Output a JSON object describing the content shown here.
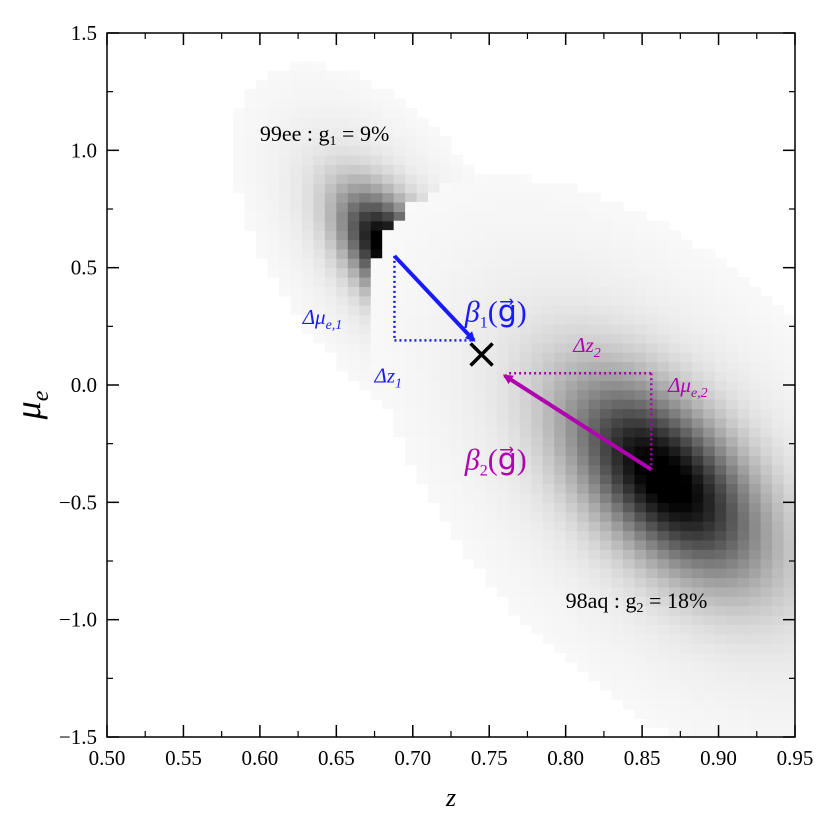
{
  "chart_data": {
    "type": "heatmap",
    "xlabel": "z",
    "ylabel": "μ",
    "ylabel_sub": "e",
    "xlim": [
      0.5,
      0.95
    ],
    "ylim": [
      -1.5,
      1.5
    ],
    "x_ticks": [
      0.5,
      0.55,
      0.6,
      0.65,
      0.7,
      0.75,
      0.8,
      0.85,
      0.9,
      0.95
    ],
    "x_tick_labels": [
      "0.50",
      "0.55",
      "0.60",
      "0.65",
      "0.70",
      "0.75",
      "0.80",
      "0.85",
      "0.90",
      "0.95"
    ],
    "y_ticks": [
      1.5,
      1.0,
      0.5,
      0.0,
      -0.5,
      -1.0,
      -1.5
    ],
    "y_tick_labels": [
      "1.5",
      "1.0",
      "0.5",
      "0.0",
      "−0.5",
      "−1.0",
      "−1.5"
    ],
    "distributions": [
      {
        "id": "99ee",
        "center": [
          0.686,
          0.57
        ],
        "spread": [
          0.022,
          0.17
        ],
        "peak": 1.0
      },
      {
        "id": "98aq",
        "center": [
          0.865,
          -0.4
        ],
        "spread": [
          0.042,
          0.28
        ],
        "peak": 0.95
      }
    ],
    "cross_point": [
      0.745,
      0.13
    ],
    "labels": {
      "label1": {
        "name": "99ee",
        "sep": " : ",
        "g": "g",
        "g_sub": "1",
        "value": " = 9%",
        "at": [
          0.6,
          1.04
        ]
      },
      "label2": {
        "name": "98aq",
        "sep": " : ",
        "g": "g",
        "g_sub": "2",
        "value": " = 18%",
        "at": [
          0.8,
          -0.95
        ]
      }
    },
    "annotations": {
      "beta1": {
        "text": "β",
        "sub": "1",
        "arg": "(g⃗)",
        "color": "#1a1aff",
        "at": [
          0.734,
          0.27
        ]
      },
      "beta2": {
        "text": "β",
        "sub": "2",
        "arg": "(g⃗)",
        "color": "#b000b0",
        "at": [
          0.734,
          -0.36
        ]
      },
      "dmu1": {
        "text": "Δμ",
        "sub": "e,1",
        "color": "#1a1aff",
        "at": [
          0.628,
          0.26
        ]
      },
      "dz1": {
        "text": "Δz",
        "sub": "1",
        "color": "#1a1aff",
        "at": [
          0.675,
          0.01
        ]
      },
      "dz2": {
        "text": "Δz",
        "sub": "2",
        "color": "#b000b0",
        "at": [
          0.805,
          0.14
        ]
      },
      "dmu2": {
        "text": "Δμ",
        "sub": "e,2",
        "color": "#b000b0",
        "at": [
          0.867,
          -0.03
        ]
      }
    },
    "arrows": [
      {
        "name": "beta1-arrow",
        "from": [
          0.688,
          0.55
        ],
        "to": [
          0.74,
          0.19
        ],
        "color": "#1a1aff"
      },
      {
        "name": "beta2-arrow",
        "from": [
          0.856,
          -0.36
        ],
        "to": [
          0.76,
          0.04
        ],
        "color": "#b000b0"
      }
    ],
    "dotted_guides": [
      {
        "name": "dmu1-guide",
        "from": [
          0.688,
          0.55
        ],
        "to": [
          0.688,
          0.19
        ],
        "color": "#1a1aff"
      },
      {
        "name": "dz1-guide",
        "from": [
          0.688,
          0.19
        ],
        "to": [
          0.74,
          0.19
        ],
        "color": "#1a1aff"
      },
      {
        "name": "dz2-guide",
        "from": [
          0.763,
          0.05
        ],
        "to": [
          0.856,
          0.05
        ],
        "color": "#b000b0"
      },
      {
        "name": "dmu2-guide",
        "from": [
          0.856,
          0.05
        ],
        "to": [
          0.856,
          -0.36
        ],
        "color": "#b000b0"
      }
    ]
  }
}
